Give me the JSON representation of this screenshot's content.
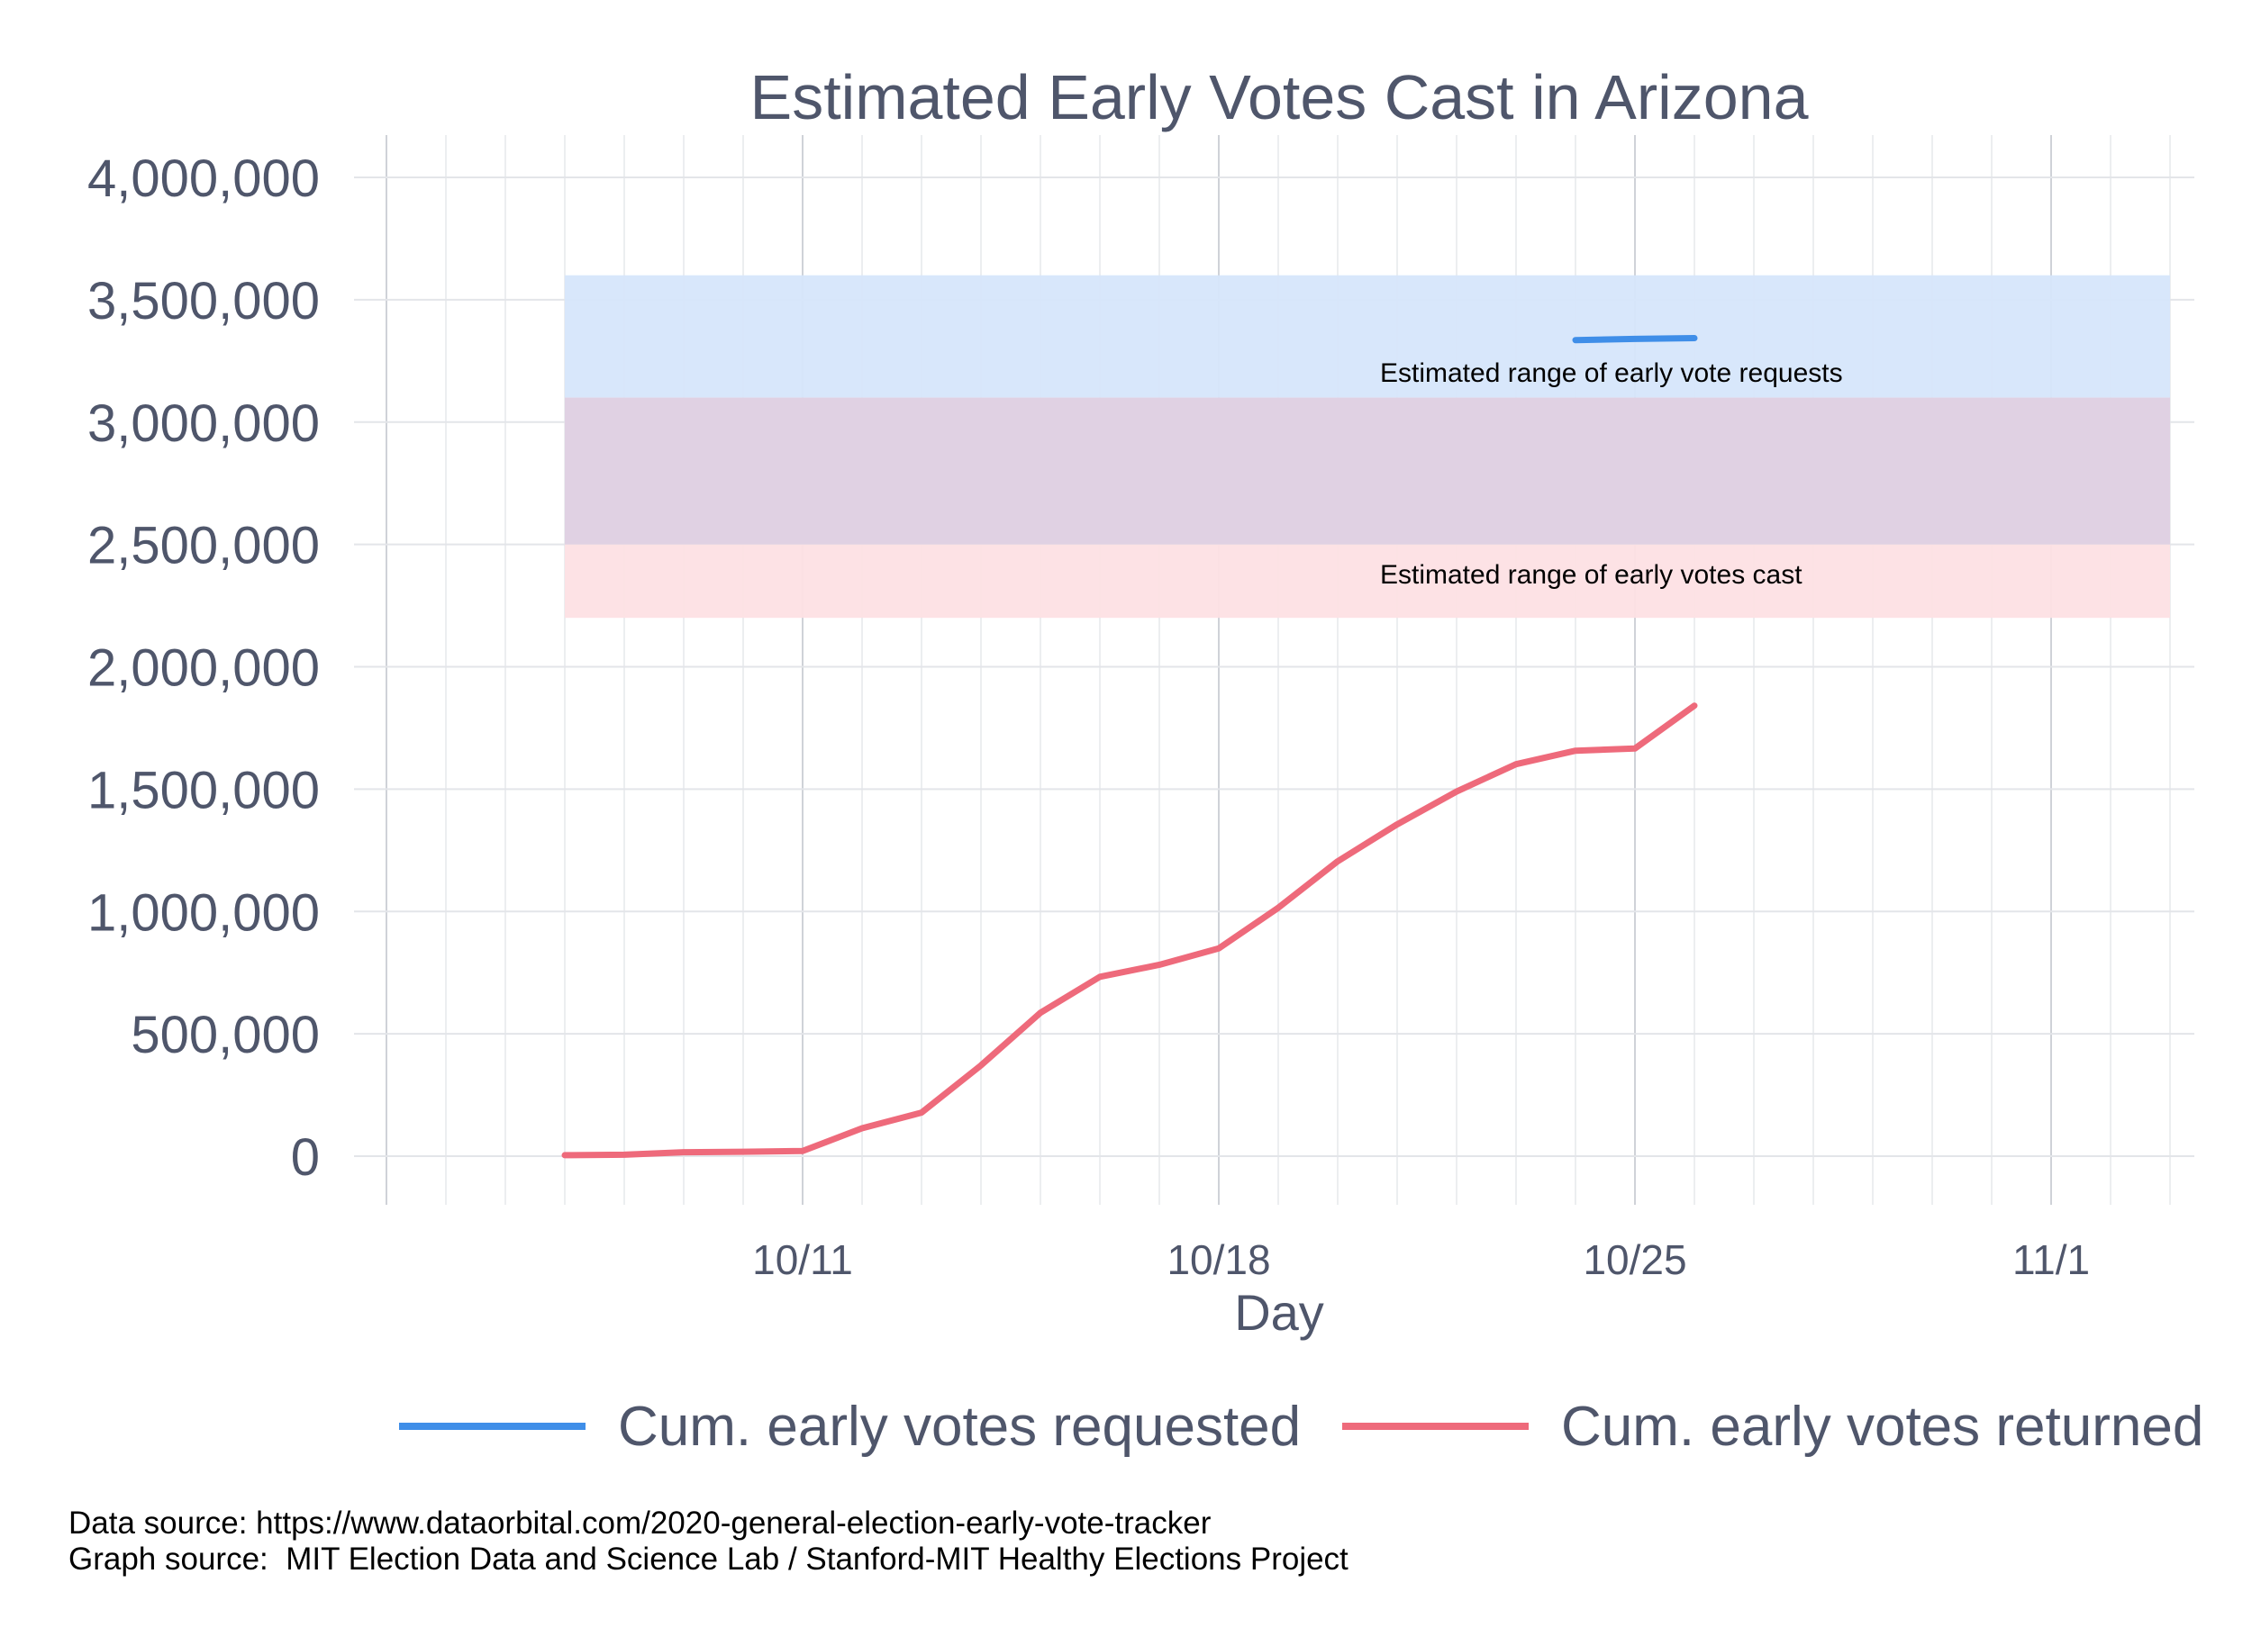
{
  "chart_data": {
    "type": "line",
    "title": "Estimated Early Votes Cast in Arizona",
    "xlabel": "Day",
    "ylabel": "",
    "ylim": [
      0,
      4000000
    ],
    "xlim": [
      "10/2",
      "11/4"
    ],
    "grid": true,
    "yticks": [
      0,
      500000,
      1000000,
      1500000,
      2000000,
      2500000,
      3000000,
      3500000,
      4000000
    ],
    "ytick_labels": [
      "0",
      "500,000",
      "1,000,000",
      "1,500,000",
      "2,000,000",
      "2,500,000",
      "3,000,000",
      "3,500,000",
      "4,000,000"
    ],
    "xticks": [
      "10/11",
      "10/18",
      "10/25",
      "11/1"
    ],
    "legend_position": "bottom",
    "series": [
      {
        "name": "Cum. early votes requested",
        "color": "#3f8ee8",
        "x": [
          "10/24",
          "10/25",
          "10/26"
        ],
        "values": [
          3335000,
          3340000,
          3343000
        ]
      },
      {
        "name": "Cum. early votes returned",
        "color": "#ee6a7b",
        "x": [
          "10/7",
          "10/8",
          "10/9",
          "10/10",
          "10/11",
          "10/12",
          "10/13",
          "10/14",
          "10/15",
          "10/16",
          "10/17",
          "10/18",
          "10/19",
          "10/20",
          "10/21",
          "10/22",
          "10/23",
          "10/24",
          "10/25",
          "10/26"
        ],
        "values": [
          4000,
          6000,
          16000,
          18000,
          21000,
          114000,
          178000,
          371000,
          586000,
          733000,
          782000,
          849000,
          1015000,
          1205000,
          1356000,
          1490000,
          1602000,
          1657000,
          1666000,
          1841000
        ]
      }
    ],
    "bands": [
      {
        "name": "Estimated range of early vote requests",
        "label": "Estimated range of early vote requests",
        "color": "#d6e6fb",
        "x_range": [
          "10/7",
          "11/3"
        ],
        "y_range": [
          3100000,
          3600000
        ]
      },
      {
        "name": "Estimated range of early votes cast",
        "label": "Estimated range of early votes cast",
        "color": "#fde0e4",
        "x_range": [
          "10/7",
          "11/3"
        ],
        "y_range": [
          2200000,
          2500000
        ]
      }
    ],
    "overlap_color": "#e0d1e3"
  },
  "footer": {
    "data_source": "Data source: https://www.dataorbital.com/2020-general-election-early-vote-tracker",
    "graph_source": "Graph source:  MIT Election Data and Science Lab / Stanford-MIT Healthy Elections Project"
  }
}
